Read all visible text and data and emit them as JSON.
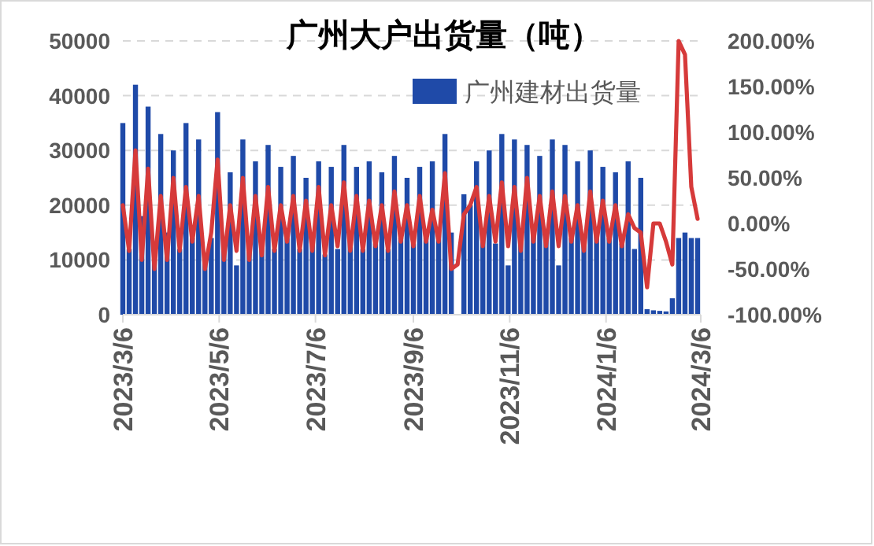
{
  "chart_data": {
    "type": "bar",
    "title": "广州大户出货量（吨）",
    "x": [
      "2023-03-06",
      "2023-03-10",
      "2023-03-14",
      "2023-03-18",
      "2023-03-22",
      "2023-03-26",
      "2023-03-30",
      "2023-04-03",
      "2023-04-07",
      "2023-04-11",
      "2023-04-15",
      "2023-04-19",
      "2023-04-23",
      "2023-04-27",
      "2023-05-01",
      "2023-05-05",
      "2023-05-09",
      "2023-05-13",
      "2023-05-17",
      "2023-05-21",
      "2023-05-25",
      "2023-05-29",
      "2023-06-02",
      "2023-06-06",
      "2023-06-10",
      "2023-06-14",
      "2023-06-18",
      "2023-06-22",
      "2023-06-26",
      "2023-06-30",
      "2023-07-04",
      "2023-07-08",
      "2023-07-12",
      "2023-07-16",
      "2023-07-20",
      "2023-07-24",
      "2023-07-28",
      "2023-08-01",
      "2023-08-05",
      "2023-08-09",
      "2023-08-13",
      "2023-08-17",
      "2023-08-21",
      "2023-08-25",
      "2023-08-29",
      "2023-09-02",
      "2023-09-06",
      "2023-09-10",
      "2023-09-14",
      "2023-09-18",
      "2023-09-22",
      "2023-09-26",
      "2023-09-30",
      "2023-10-04",
      "2023-10-08",
      "2023-10-12",
      "2023-10-16",
      "2023-10-20",
      "2023-10-24",
      "2023-10-28",
      "2023-11-01",
      "2023-11-05",
      "2023-11-09",
      "2023-11-13",
      "2023-11-17",
      "2023-11-21",
      "2023-11-25",
      "2023-11-29",
      "2023-12-03",
      "2023-12-07",
      "2023-12-11",
      "2023-12-15",
      "2023-12-19",
      "2023-12-23",
      "2023-12-27",
      "2023-12-31",
      "2024-01-04",
      "2024-01-08",
      "2024-01-12",
      "2024-01-16",
      "2024-01-20",
      "2024-01-24",
      "2024-01-28",
      "2024-02-01",
      "2024-02-05",
      "2024-02-09",
      "2024-02-13",
      "2024-02-17",
      "2024-02-21",
      "2024-02-25",
      "2024-02-29",
      "2024-03-04"
    ],
    "series": [
      {
        "name": "广州建材出货量",
        "color": "#1f4aa8",
        "values": [
          35000,
          12000,
          42000,
          18000,
          38000,
          10000,
          33000,
          15000,
          30000,
          12000,
          35000,
          14000,
          32000,
          10000,
          14000,
          37000,
          12000,
          26000,
          9000,
          32000,
          12000,
          28000,
          13000,
          31000,
          12000,
          27000,
          14000,
          29000,
          12000,
          25000,
          13000,
          28000,
          11000,
          27000,
          12000,
          31000,
          14000,
          27000,
          12000,
          28000,
          13000,
          26000,
          12000,
          29000,
          14000,
          25000,
          13000,
          27000,
          14000,
          28000,
          16000,
          33000,
          15000,
          null,
          22000,
          20000,
          28000,
          14000,
          30000,
          13000,
          33000,
          9000,
          32000,
          14000,
          31000,
          15000,
          29000,
          14000,
          32000,
          9000,
          31000,
          14000,
          28000,
          13000,
          30000,
          15000,
          27000,
          14000,
          26000,
          13000,
          28000,
          12000,
          25000,
          1000,
          800,
          700,
          600,
          3000,
          14000,
          15000,
          14000,
          14000
        ]
      },
      {
        "type": "line",
        "axis": "y2",
        "color": "#d63a3a",
        "values": [
          20,
          -30,
          80,
          -40,
          60,
          -50,
          30,
          -40,
          50,
          -30,
          40,
          -20,
          30,
          -50,
          -10,
          70,
          -40,
          20,
          -30,
          50,
          -40,
          30,
          -35,
          40,
          -30,
          20,
          -20,
          30,
          -30,
          25,
          -30,
          40,
          -35,
          20,
          -25,
          45,
          -30,
          30,
          -30,
          25,
          -25,
          20,
          -30,
          35,
          -20,
          20,
          -25,
          30,
          -20,
          15,
          -20,
          55,
          -50,
          -45,
          10,
          20,
          40,
          -25,
          30,
          -20,
          45,
          -25,
          40,
          -30,
          50,
          -20,
          30,
          -25,
          35,
          -25,
          30,
          -20,
          20,
          -30,
          35,
          -20,
          25,
          -20,
          20,
          -25,
          10,
          -5,
          -10,
          -70,
          0,
          0,
          -20,
          -45,
          200,
          185,
          40,
          5
        ]
      }
    ],
    "xlim": [
      "2023-03-06",
      "2024-03-06"
    ],
    "xticks": [
      {
        "value": "2023-03-06",
        "label": "2023/3/6"
      },
      {
        "value": "2023-05-06",
        "label": "2023/5/6"
      },
      {
        "value": "2023-07-06",
        "label": "2023/7/6"
      },
      {
        "value": "2023-09-06",
        "label": "2023/9/6"
      },
      {
        "value": "2023-11-06",
        "label": "2023/11/6"
      },
      {
        "value": "2024-01-06",
        "label": "2024/1/6"
      },
      {
        "value": "2024-03-06",
        "label": "2024/3/6"
      }
    ],
    "ylim": [
      0,
      50000
    ],
    "yticks": [
      0,
      10000,
      20000,
      30000,
      40000,
      50000
    ],
    "y2lim": [
      -100,
      200
    ],
    "y2ticks": [
      {
        "value": -100,
        "label": "-100.00%"
      },
      {
        "value": -50,
        "label": "-50.00%"
      },
      {
        "value": 0,
        "label": "0.00%"
      },
      {
        "value": 50,
        "label": "50.00%"
      },
      {
        "value": 100,
        "label": "100.00%"
      },
      {
        "value": 150,
        "label": "150.00%"
      },
      {
        "value": 200,
        "label": "200.00%"
      }
    ],
    "grid": "y",
    "legend": "top right"
  }
}
